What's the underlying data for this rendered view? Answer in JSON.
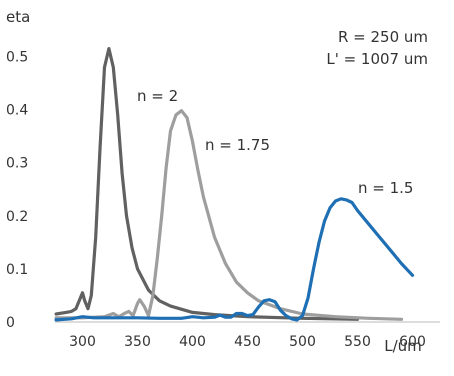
{
  "chart_data": {
    "type": "line",
    "title": "",
    "xlabel": "L/um",
    "ylabel": "eta",
    "xlim": [
      275,
      625
    ],
    "ylim": [
      0,
      0.55
    ],
    "xticks": [
      300,
      350,
      400,
      450,
      500,
      550,
      600
    ],
    "yticks": [
      0,
      0.1,
      0.2,
      0.3,
      0.4,
      0.5
    ],
    "grid": false,
    "parameters": [
      "R = 250 um",
      "L' = 1007 um"
    ],
    "series": [
      {
        "name": "n = 2",
        "color": "#616161",
        "x": [
          276,
          285,
          290,
          294,
          298,
          300,
          302,
          305,
          308,
          312,
          316,
          320,
          324,
          328,
          332,
          336,
          340,
          345,
          350,
          360,
          370,
          380,
          400,
          420,
          450,
          500,
          550
        ],
        "y": [
          0.015,
          0.018,
          0.02,
          0.025,
          0.045,
          0.055,
          0.04,
          0.025,
          0.05,
          0.16,
          0.33,
          0.48,
          0.515,
          0.48,
          0.39,
          0.28,
          0.2,
          0.14,
          0.1,
          0.06,
          0.04,
          0.03,
          0.018,
          0.014,
          0.01,
          0.007,
          0.005
        ]
      },
      {
        "name": "n = 1.75",
        "color": "#9e9e9e",
        "x": [
          276,
          300,
          320,
          328,
          333,
          338,
          342,
          346,
          350,
          352,
          356,
          360,
          364,
          368,
          372,
          376,
          380,
          385,
          390,
          395,
          400,
          405,
          410,
          420,
          430,
          440,
          450,
          460,
          480,
          500,
          530,
          560,
          590
        ],
        "y": [
          0.008,
          0.008,
          0.01,
          0.016,
          0.01,
          0.016,
          0.02,
          0.012,
          0.035,
          0.042,
          0.03,
          0.012,
          0.05,
          0.12,
          0.2,
          0.29,
          0.36,
          0.39,
          0.398,
          0.385,
          0.34,
          0.285,
          0.235,
          0.16,
          0.11,
          0.075,
          0.055,
          0.04,
          0.025,
          0.015,
          0.01,
          0.007,
          0.005
        ]
      },
      {
        "name": "n = 1.5",
        "color": "#1f6fb5",
        "x": [
          276,
          290,
          300,
          310,
          330,
          350,
          370,
          390,
          400,
          410,
          420,
          425,
          430,
          435,
          440,
          445,
          450,
          455,
          460,
          465,
          470,
          475,
          480,
          485,
          490,
          495,
          500,
          505,
          510,
          515,
          520,
          525,
          530,
          535,
          540,
          545,
          550,
          560,
          570,
          580,
          590,
          600
        ],
        "y": [
          0.004,
          0.006,
          0.01,
          0.008,
          0.008,
          0.008,
          0.007,
          0.007,
          0.01,
          0.008,
          0.009,
          0.013,
          0.009,
          0.009,
          0.016,
          0.016,
          0.012,
          0.014,
          0.028,
          0.04,
          0.042,
          0.038,
          0.022,
          0.012,
          0.006,
          0.004,
          0.012,
          0.045,
          0.1,
          0.15,
          0.19,
          0.215,
          0.228,
          0.232,
          0.23,
          0.225,
          0.21,
          0.185,
          0.16,
          0.135,
          0.11,
          0.088
        ]
      }
    ]
  }
}
